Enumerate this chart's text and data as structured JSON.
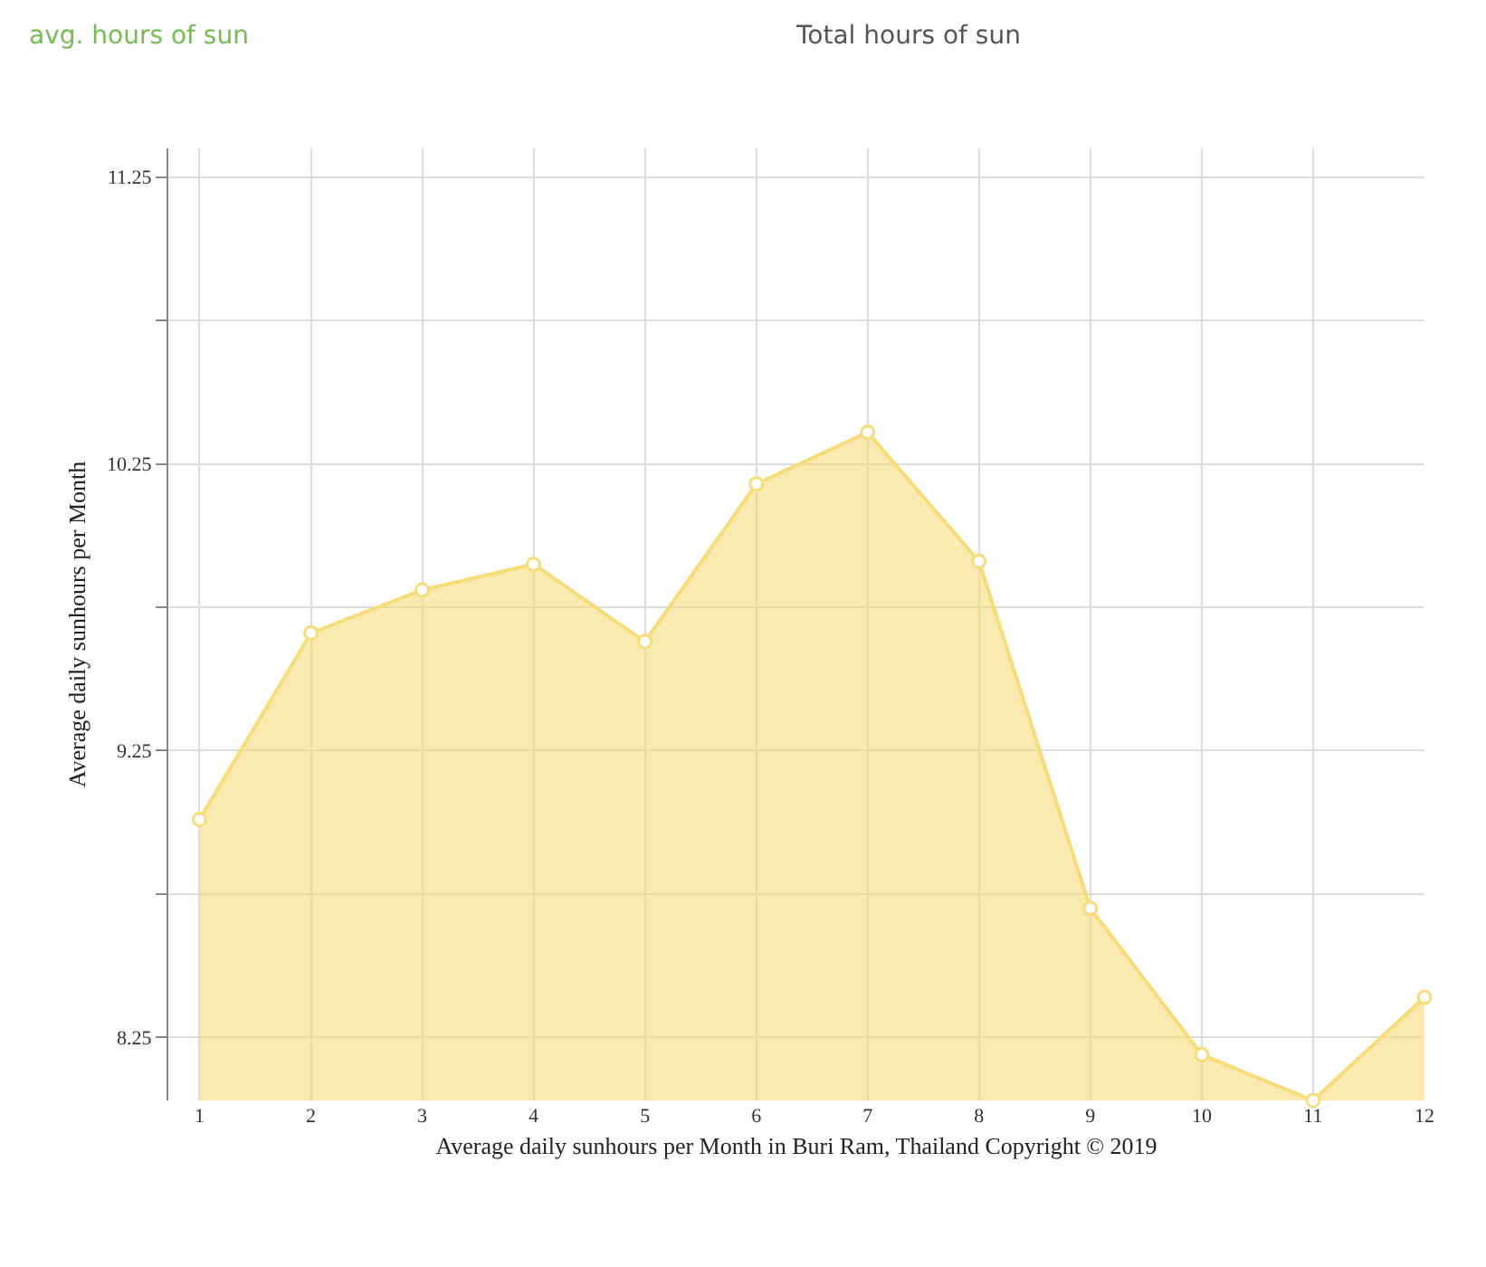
{
  "chart_data": {
    "type": "area",
    "title": "avg. hours of sun",
    "subtitle": "Total hours of sun",
    "xlabel": "Average daily sunhours per Month in Buri Ram, Thailand Copyright © 2019",
    "ylabel": "Average daily sunhours per Month",
    "x": [
      1,
      2,
      3,
      4,
      5,
      6,
      7,
      8,
      9,
      10,
      11,
      12
    ],
    "series": [
      {
        "color": "#f7dc7a",
        "values": [
          9.01,
          9.66,
          9.81,
          9.9,
          9.63,
          10.18,
          10.36,
          9.91,
          8.7,
          8.19,
          8.03,
          8.39
        ]
      }
    ],
    "xlim": [
      0.72,
      12
    ],
    "xticks": [
      1,
      2,
      3,
      4,
      5,
      6,
      7,
      8,
      9,
      10,
      11,
      12
    ],
    "ylim": [
      8.03,
      11.35
    ],
    "yticks": [
      8.25,
      {
        "value": 8.75,
        "label": null
      },
      9.25,
      {
        "value": 9.75,
        "label": null
      },
      10.25,
      {
        "value": 10.75,
        "label": null
      },
      11.25
    ],
    "grid": true,
    "marker": "circle"
  }
}
